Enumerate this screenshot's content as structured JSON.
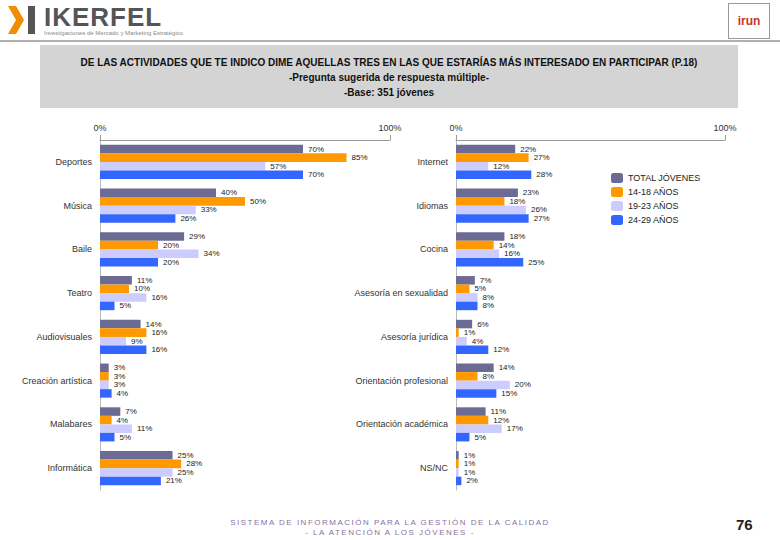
{
  "header": {
    "logo": "IKERFEL",
    "logo_subtitle": "Investigaciones de Mercado y Marketing Estratégico",
    "emblem": "irun"
  },
  "title": [
    "DE LAS ACTIVIDADES QUE TE INDICO DIME AQUELLAS TRES EN LAS QUE ESTARÍAS MÁS INTERESADO EN PARTICIPAR (P.18)",
    "-Pregunta sugerida de respuesta múltiple-",
    "-Base: 351 jóvenes"
  ],
  "chart_data": [
    {
      "type": "bar",
      "orientation": "horizontal",
      "data_labels": true,
      "grid": false,
      "xlim": [
        0,
        100
      ],
      "xticks": [
        {
          "value": 0,
          "label": "0%"
        },
        {
          "value": 100,
          "label": "100%"
        }
      ],
      "categories": [
        "Deportes",
        "Música",
        "Baile",
        "Teatro",
        "Audiovisuales",
        "Creación artística",
        "Malabares",
        "Informática"
      ],
      "series": [
        {
          "name": "TOTAL JÓVENES",
          "color": "#6b6b94",
          "values": [
            70,
            40,
            29,
            11,
            14,
            3,
            7,
            25
          ],
          "value_labels": [
            "70%",
            "40%",
            "29%",
            "11%",
            "14%",
            "3%",
            "7%",
            "25%"
          ]
        },
        {
          "name": "14-18 AÑOS",
          "color": "#ff9900",
          "values": [
            85,
            50,
            20,
            10,
            16,
            3,
            4,
            28
          ],
          "value_labels": [
            "85%",
            "50%",
            "20%",
            "10%",
            "16%",
            "3%",
            "4%",
            "28%"
          ]
        },
        {
          "name": "19-23 AÑOS",
          "color": "#ccccff",
          "values": [
            57,
            33,
            34,
            16,
            9,
            3,
            11,
            25
          ],
          "value_labels": [
            "57%",
            "33%",
            "34%",
            "16%",
            "9%",
            "3%",
            "11%",
            "25%"
          ]
        },
        {
          "name": "24-29 AÑOS",
          "color": "#3366ff",
          "values": [
            70,
            26,
            20,
            5,
            16,
            4,
            5,
            21
          ],
          "value_labels": [
            "70%",
            "26%",
            "20%",
            "5%",
            "16%",
            "4%",
            "5%",
            "21%"
          ]
        }
      ]
    },
    {
      "type": "bar",
      "orientation": "horizontal",
      "data_labels": true,
      "grid": false,
      "legend": "right",
      "xlim": [
        0,
        100
      ],
      "xticks": [
        {
          "value": 0,
          "label": "0%"
        },
        {
          "value": 100,
          "label": "100%"
        }
      ],
      "categories": [
        "Internet",
        "Idiomas",
        "Cocina",
        "Asesoría en sexualidad",
        "Asesoría jurídica",
        "Orientación profesional",
        "Orientación académica",
        "NS/NC"
      ],
      "series": [
        {
          "name": "TOTAL JÓVENES",
          "color": "#6b6b94",
          "values": [
            22,
            23,
            18,
            7,
            6,
            14,
            11,
            1
          ],
          "value_labels": [
            "22%",
            "23%",
            "18%",
            "7%",
            "6%",
            "14%",
            "11%",
            "1%"
          ]
        },
        {
          "name": "14-18 AÑOS",
          "color": "#ff9900",
          "values": [
            27,
            18,
            14,
            5,
            1,
            8,
            12,
            1
          ],
          "value_labels": [
            "27%",
            "18%",
            "14%",
            "5%",
            "1%",
            "8%",
            "12%",
            "1%"
          ]
        },
        {
          "name": "19-23 AÑOS",
          "color": "#ccccff",
          "values": [
            12,
            26,
            16,
            8,
            4,
            20,
            17,
            1
          ],
          "value_labels": [
            "12%",
            "26%",
            "16%",
            "8%",
            "4%",
            "20%",
            "17%",
            "1%"
          ]
        },
        {
          "name": "24-29 AÑOS",
          "color": "#3366ff",
          "values": [
            28,
            27,
            25,
            8,
            12,
            15,
            5,
            2
          ],
          "value_labels": [
            "28%",
            "27%",
            "25%",
            "8%",
            "12%",
            "15%",
            "5%",
            "2%"
          ]
        }
      ]
    }
  ],
  "footer": [
    "SISTEMA DE INFORMACIÓN PARA LA GESTIÓN DE LA CALIDAD",
    "- LA ATENCIÓN A LOS JÓVENES -"
  ],
  "page_number": 76
}
